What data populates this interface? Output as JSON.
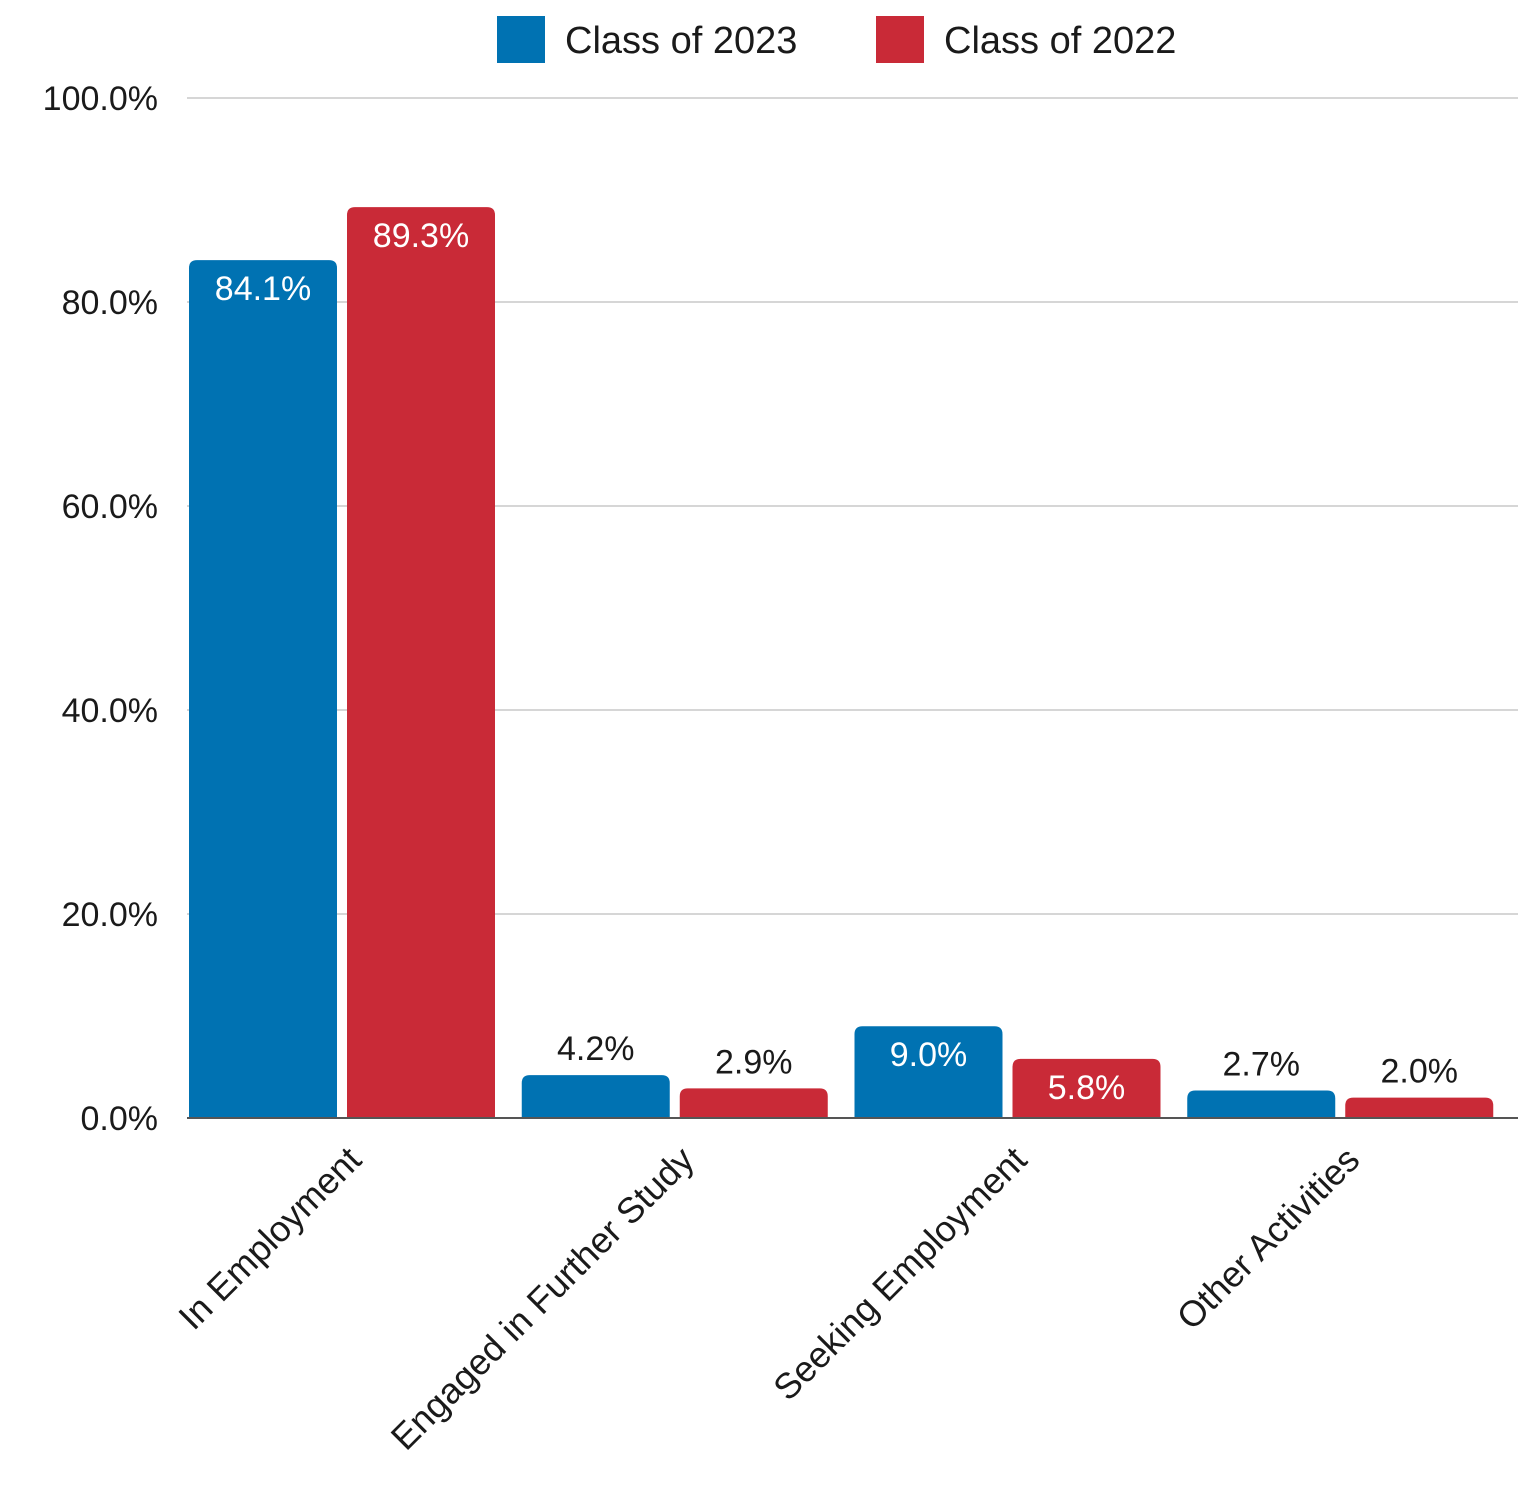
{
  "chart_data": {
    "type": "bar",
    "categories": [
      "In Employment",
      "Engaged in Further Study",
      "Seeking Employment",
      "Other Activities"
    ],
    "series": [
      {
        "name": "Class of 2023",
        "color": "#0072b2",
        "values": [
          84.1,
          4.2,
          9.0,
          2.7
        ],
        "labels": [
          "84.1%",
          "4.2%",
          "9.0%",
          "2.7%"
        ]
      },
      {
        "name": "Class of 2022",
        "color": "#c92a37",
        "values": [
          89.3,
          2.9,
          5.8,
          2.0
        ],
        "labels": [
          "89.3%",
          "2.9%",
          "5.8%",
          "2.0%"
        ]
      }
    ],
    "ylim": [
      0,
      100
    ],
    "yticks": [
      0,
      20,
      40,
      60,
      80,
      100
    ],
    "ytick_labels": [
      "0.0%",
      "20.0%",
      "40.0%",
      "60.0%",
      "80.0%",
      "100.0%"
    ],
    "title": "",
    "xlabel": "",
    "ylabel": "",
    "grid": true,
    "legend_position": "top-center"
  }
}
